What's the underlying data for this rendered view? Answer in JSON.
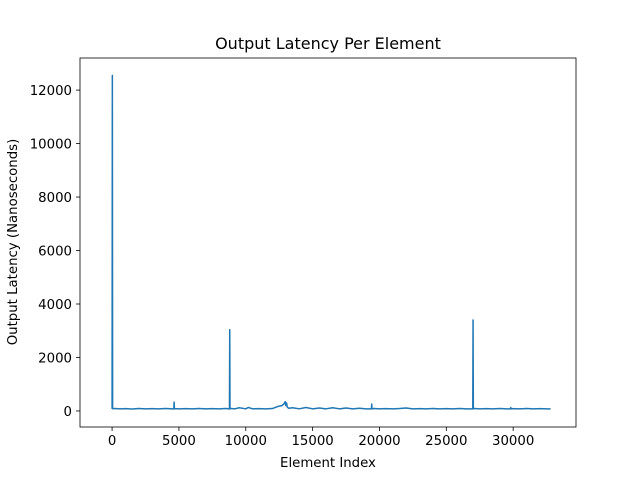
{
  "chart_data": {
    "type": "line",
    "title": "Output Latency Per Element",
    "xlabel": "Element Index",
    "ylabel": "Output Latency (Nanoseconds)",
    "xlim": [
      -2400,
      34700
    ],
    "ylim": [
      -600,
      13200
    ],
    "xticks": [
      0,
      5000,
      10000,
      15000,
      20000,
      25000,
      30000
    ],
    "xtick_labels": [
      "0",
      "5000",
      "10000",
      "15000",
      "20000",
      "25000",
      "30000"
    ],
    "yticks": [
      0,
      2000,
      4000,
      6000,
      8000,
      10000,
      12000
    ],
    "ytick_labels": [
      "0",
      "2000",
      "4000",
      "6000",
      "8000",
      "10000",
      "12000"
    ],
    "grid": false,
    "series": [
      {
        "color": "#1f77b4",
        "x": [
          0,
          20,
          40,
          60,
          200,
          600,
          1000,
          1500,
          2000,
          2500,
          3000,
          3500,
          4000,
          4500,
          4620,
          4640,
          4660,
          4700,
          5000,
          5500,
          6000,
          6500,
          7000,
          7500,
          8000,
          8500,
          8780,
          8800,
          8820,
          8900,
          9200,
          9500,
          10000,
          10200,
          10500,
          11000,
          11500,
          12000,
          12300,
          12500,
          12700,
          12850,
          12950,
          13000,
          13050,
          13100,
          13200,
          13500,
          14000,
          14500,
          15000,
          15500,
          16000,
          16500,
          17000,
          17500,
          18000,
          18500,
          19000,
          19400,
          19420,
          19440,
          19600,
          20000,
          20500,
          21000,
          21500,
          22000,
          22500,
          23000,
          23500,
          24000,
          24500,
          25000,
          25500,
          26000,
          26500,
          26980,
          27000,
          27020,
          27100,
          27500,
          28000,
          28500,
          29000,
          29500,
          29800,
          29820,
          29840,
          30000,
          30500,
          31000,
          31500,
          32000,
          32500,
          32800
        ],
        "y": [
          80,
          12550,
          100,
          80,
          90,
          80,
          85,
          75,
          90,
          80,
          85,
          80,
          90,
          80,
          80,
          330,
          80,
          85,
          80,
          85,
          80,
          90,
          80,
          85,
          80,
          90,
          80,
          3040,
          80,
          90,
          80,
          120,
          80,
          130,
          80,
          85,
          80,
          90,
          150,
          180,
          200,
          260,
          350,
          200,
          300,
          150,
          100,
          120,
          80,
          130,
          80,
          110,
          80,
          120,
          80,
          110,
          80,
          100,
          80,
          80,
          260,
          80,
          90,
          80,
          85,
          80,
          90,
          110,
          80,
          85,
          80,
          90,
          80,
          85,
          80,
          90,
          80,
          80,
          3400,
          80,
          90,
          80,
          85,
          80,
          90,
          80,
          80,
          130,
          80,
          85,
          80,
          90,
          80,
          85,
          80,
          80
        ]
      }
    ]
  }
}
